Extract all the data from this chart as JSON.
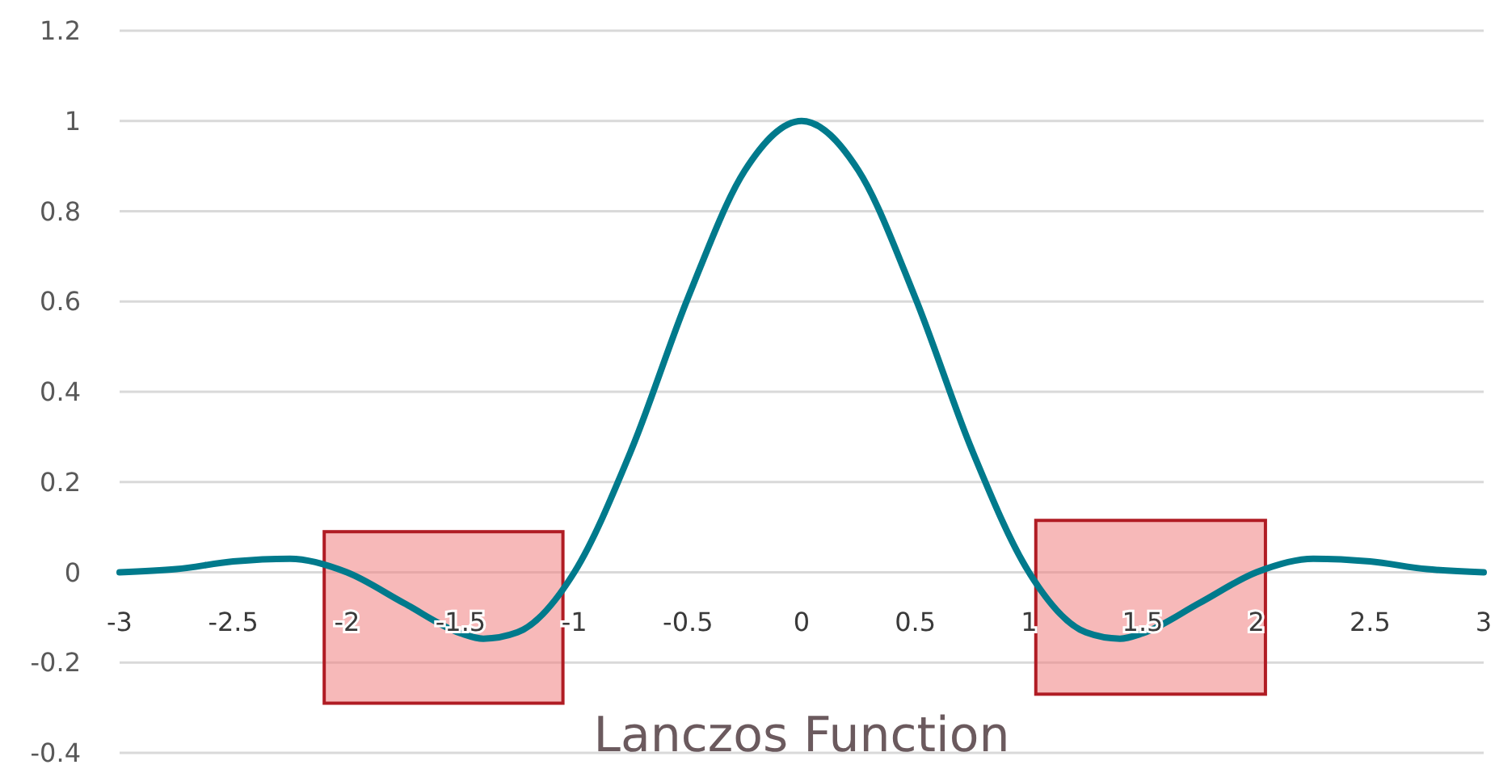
{
  "chart_data": {
    "type": "line",
    "xlabel": "Lanczos Function",
    "x": [
      -3,
      -2.75,
      -2.5,
      -2.25,
      -2,
      -1.75,
      -1.5,
      -1.4,
      -1.25,
      -1,
      -0.75,
      -0.5,
      -0.25,
      0,
      0.25,
      0.5,
      0.75,
      1,
      1.25,
      1.4,
      1.5,
      1.75,
      2,
      2.25,
      2.5,
      2.75,
      3
    ],
    "series": [
      {
        "color": "#007a8c",
        "values": [
          0,
          0.007,
          0.024,
          0.03,
          0,
          -0.068,
          -0.135,
          -0.147,
          -0.133,
          0,
          0.27,
          0.608,
          0.89,
          1,
          0.89,
          0.608,
          0.27,
          0,
          -0.133,
          -0.147,
          -0.135,
          -0.068,
          0,
          0.03,
          0.024,
          0.007,
          0
        ]
      }
    ],
    "xlim": [
      -3,
      3
    ],
    "xticks": [
      -3,
      -2.5,
      -2,
      -1.5,
      -1,
      -0.5,
      0,
      0.5,
      1,
      1.5,
      2,
      2.5,
      3
    ],
    "ylim": [
      -0.4,
      1.2
    ],
    "yticks": [
      -0.4,
      -0.2,
      0,
      0.2,
      0.4,
      0.6,
      0.8,
      1,
      1.2
    ],
    "grid": "y",
    "marker": "none",
    "line_style": "solid"
  }
}
